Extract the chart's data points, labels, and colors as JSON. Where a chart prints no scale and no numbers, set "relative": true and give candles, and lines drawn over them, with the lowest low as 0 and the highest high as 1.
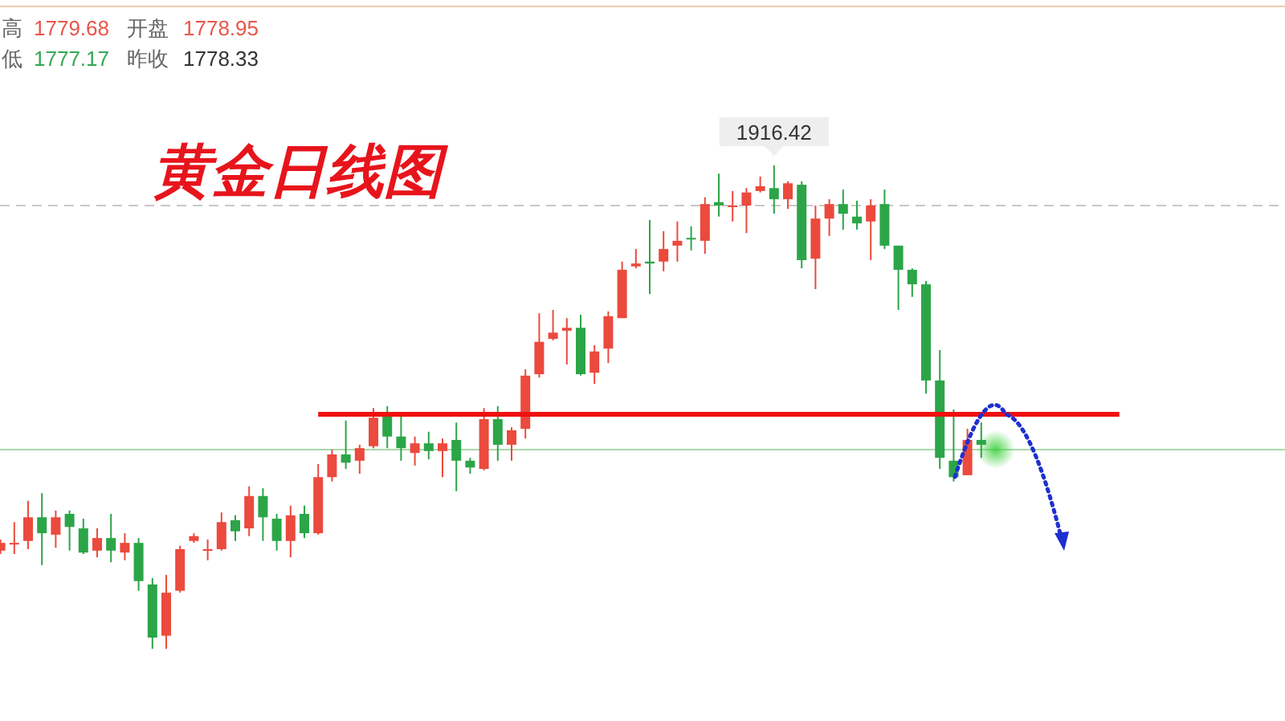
{
  "chart_data": {
    "type": "candlestick",
    "title": "黄金日线图",
    "relative": true,
    "annotations": [
      "高",
      "1779.68",
      "开盘",
      "1778.95",
      "低",
      "1777.17",
      "昨收",
      "1778.33",
      {
        "text": "1916.42",
        "y": 1
      }
    ],
    "categories": [
      null,
      null,
      null,
      null,
      null,
      null,
      null,
      null,
      null,
      null,
      null,
      null,
      null,
      null,
      null,
      null,
      null,
      null,
      null,
      null,
      null,
      null,
      null,
      null,
      null,
      null,
      null,
      null,
      null,
      null,
      null,
      null,
      null,
      null,
      null,
      null,
      null,
      null,
      null,
      null,
      null,
      null,
      null,
      null,
      null,
      null,
      null,
      null,
      null,
      null,
      null,
      null,
      null,
      null,
      null,
      null,
      null,
      null,
      null,
      null,
      null,
      null,
      null,
      null,
      null,
      null,
      null,
      null,
      null,
      null,
      null,
      null,
      null,
      null,
      null,
      null,
      null,
      null,
      null,
      null,
      null,
      null,
      null,
      null,
      null,
      null,
      null,
      null,
      null,
      null,
      null,
      null,
      null
    ],
    "ohlc": [
      [
        0.203,
        0.226,
        0.196,
        0.219
      ],
      [
        0.219,
        0.262,
        0.196,
        0.219
      ],
      [
        0.223,
        0.306,
        0.206,
        0.272
      ],
      [
        0.272,
        0.322,
        0.173,
        0.239
      ],
      [
        0.236,
        0.286,
        0.209,
        0.272
      ],
      [
        0.279,
        0.286,
        0.203,
        0.252
      ],
      [
        0.249,
        0.269,
        0.196,
        0.199
      ],
      [
        0.203,
        0.249,
        0.189,
        0.229
      ],
      [
        0.229,
        0.279,
        0.179,
        0.203
      ],
      [
        0.199,
        0.239,
        0.183,
        0.219
      ],
      [
        0.219,
        0.229,
        0.12,
        0.14
      ],
      [
        0.133,
        0.146,
        0,
        0.023
      ],
      [
        0.027,
        0.153,
        0,
        0.116
      ],
      [
        0.12,
        0.213,
        0.116,
        0.206
      ],
      [
        0.223,
        0.239,
        0.219,
        0.233
      ],
      [
        0.206,
        0.226,
        0.183,
        0.206
      ],
      [
        0.206,
        0.282,
        0.203,
        0.262
      ],
      [
        0.266,
        0.276,
        0.223,
        0.243
      ],
      [
        0.249,
        0.336,
        0.233,
        0.316
      ],
      [
        0.316,
        0.332,
        0.223,
        0.272
      ],
      [
        0.269,
        0.279,
        0.203,
        0.223
      ],
      [
        0.223,
        0.296,
        0.189,
        0.276
      ],
      [
        0.279,
        0.296,
        0.229,
        0.239
      ],
      [
        0.239,
        0.382,
        0.236,
        0.355
      ],
      [
        0.355,
        0.412,
        0.346,
        0.402
      ],
      [
        0.402,
        0.472,
        0.372,
        0.385
      ],
      [
        0.389,
        0.422,
        0.362,
        0.415
      ],
      [
        0.419,
        0.498,
        0.415,
        0.478
      ],
      [
        0.485,
        0.502,
        0.415,
        0.439
      ],
      [
        0.439,
        0.488,
        0.389,
        0.415
      ],
      [
        0.405,
        0.439,
        0.379,
        0.425
      ],
      [
        0.425,
        0.449,
        0.392,
        0.409
      ],
      [
        0.409,
        0.435,
        0.355,
        0.425
      ],
      [
        0.432,
        0.468,
        0.326,
        0.389
      ],
      [
        0.389,
        0.395,
        0.362,
        0.375
      ],
      [
        0.372,
        0.498,
        0.369,
        0.475
      ],
      [
        0.475,
        0.502,
        0.389,
        0.422
      ],
      [
        0.422,
        0.458,
        0.389,
        0.452
      ],
      [
        0.455,
        0.578,
        0.435,
        0.565
      ],
      [
        0.568,
        0.694,
        0.561,
        0.635
      ],
      [
        0.641,
        0.701,
        0.638,
        0.654
      ],
      [
        0.658,
        0.684,
        0.588,
        0.664
      ],
      [
        0.664,
        0.691,
        0.565,
        0.568
      ],
      [
        0.571,
        0.628,
        0.548,
        0.615
      ],
      [
        0.621,
        0.698,
        0.591,
        0.688
      ],
      [
        0.684,
        0.801,
        0.684,
        0.784
      ],
      [
        0.791,
        0.827,
        0.787,
        0.797
      ],
      [
        0.801,
        0.887,
        0.734,
        0.797
      ],
      [
        0.801,
        0.864,
        0.781,
        0.827
      ],
      [
        0.834,
        0.884,
        0.801,
        0.844
      ],
      [
        0.85,
        0.874,
        0.824,
        0.847
      ],
      [
        0.844,
        0.934,
        0.817,
        0.92
      ],
      [
        0.924,
        0.983,
        0.894,
        0.917
      ],
      [
        0.914,
        0.947,
        0.884,
        0.917
      ],
      [
        0.917,
        0.953,
        0.86,
        0.944
      ],
      [
        0.947,
        0.977,
        0.944,
        0.957
      ],
      [
        0.953,
        1,
        0.9,
        0.93
      ],
      [
        0.93,
        0.967,
        0.91,
        0.963
      ],
      [
        0.96,
        0.967,
        0.787,
        0.804
      ],
      [
        0.807,
        0.917,
        0.744,
        0.89
      ],
      [
        0.89,
        0.93,
        0.854,
        0.92
      ],
      [
        0.92,
        0.95,
        0.867,
        0.9
      ],
      [
        0.894,
        0.927,
        0.867,
        0.88
      ],
      [
        0.884,
        0.93,
        0.804,
        0.917
      ],
      [
        0.92,
        0.95,
        0.827,
        0.834
      ],
      [
        0.834,
        0.834,
        0.701,
        0.784
      ],
      [
        0.784,
        0.787,
        0.728,
        0.754
      ],
      [
        0.754,
        0.761,
        0.528,
        0.555
      ],
      [
        0.555,
        0.618,
        0.372,
        0.395
      ],
      [
        0.389,
        0.495,
        0.346,
        0.355
      ],
      [
        0.359,
        0.455,
        0.359,
        0.432
      ],
      [
        0.432,
        0.468,
        0.395,
        0.422
      ],
      null,
      null,
      null,
      null,
      null,
      null,
      null,
      null,
      null,
      null,
      null,
      null,
      null,
      null,
      null,
      null,
      null,
      null,
      null,
      null,
      null
    ],
    "series": [
      {
        "type": "line",
        "color": "#ee1111",
        "values": [
          null,
          null,
          null,
          null,
          null,
          null,
          null,
          null,
          null,
          null,
          null,
          null,
          null,
          null,
          null,
          null,
          null,
          null,
          null,
          null,
          null,
          null,
          null,
          0.485,
          null,
          null,
          null,
          null,
          null,
          null,
          null,
          null,
          null,
          null,
          null,
          null,
          null,
          null,
          null,
          null,
          null,
          null,
          null,
          null,
          null,
          null,
          null,
          null,
          null,
          null,
          null,
          null,
          null,
          null,
          null,
          null,
          null,
          null,
          null,
          null,
          null,
          null,
          null,
          null,
          null,
          null,
          null,
          null,
          null,
          null,
          null,
          null,
          null,
          null,
          null,
          null,
          null,
          null,
          null,
          null,
          null,
          0.485,
          null,
          null,
          null,
          null,
          null,
          null,
          null,
          null,
          null,
          null,
          null
        ]
      }
    ],
    "ref_lines": [
      {
        "axis": "y",
        "value": 0.917,
        "color": "#c8c8c8",
        "line_style": "dashed"
      },
      {
        "axis": "y",
        "value": 0.412,
        "color": "#a8daa8",
        "line_style": "solid"
      }
    ]
  }
}
